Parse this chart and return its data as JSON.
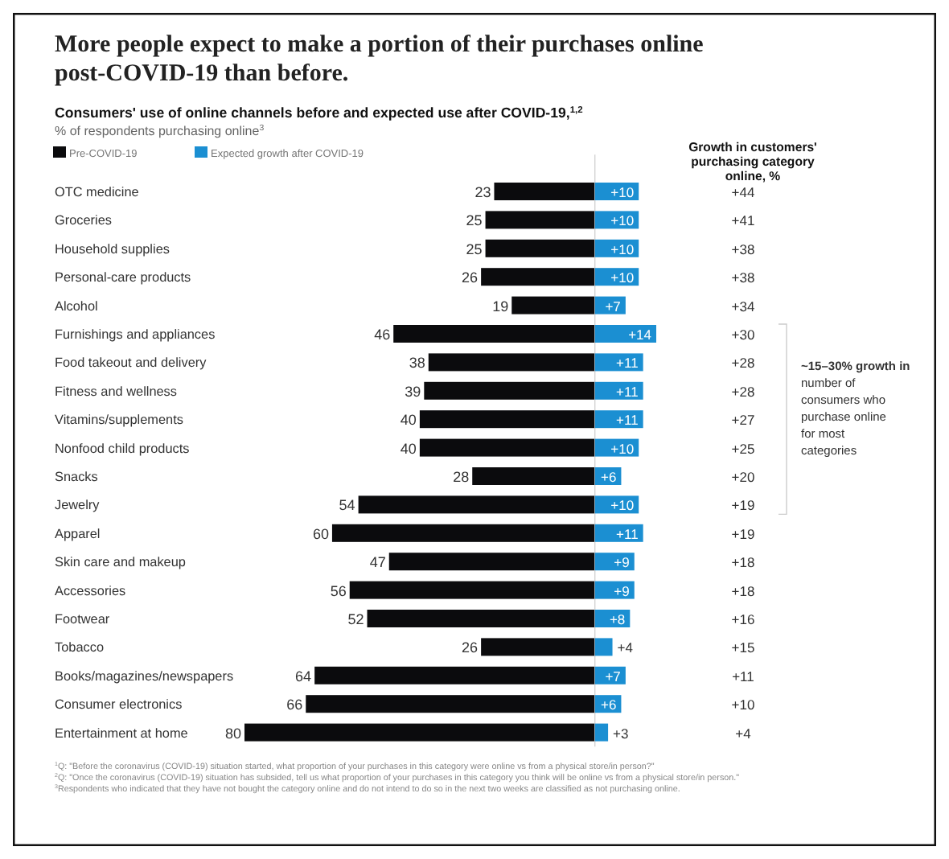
{
  "chart_data": [
    {
      "type": "bar",
      "orientation": "horizontal",
      "xlim": [
        80,
        0
      ],
      "data_labels": true,
      "title": "More people expect to make a portion of their purchases online post-COVID-19 than before.",
      "subtitle": "Consumers' use of online channels before and expected use after COVID-19,$^{1,2}$",
      "categories": [
        "OTC medicine",
        "Groceries",
        "Household supplies",
        "Personal-care products",
        "Alcohol",
        "Furnishings and appliances",
        "Food takeout and delivery",
        "Fitness and wellness",
        "Vitamins/supplements",
        "Nonfood child products",
        "Snacks",
        "Jewelry",
        "Apparel",
        "Skin care and makeup",
        "Accessories",
        "Footwear",
        "Tobacco",
        "Books/magazines/newspapers",
        "Consumer electronics",
        "Entertainment at home"
      ],
      "series": [
        {
          "name": "Pre-COVID-19",
          "color": "#0b0b0d",
          "values": [
            23,
            25,
            25,
            26,
            19,
            46,
            38,
            39,
            40,
            40,
            28,
            54,
            60,
            47,
            56,
            52,
            26,
            64,
            66,
            80
          ]
        }
      ],
      "legend": "top left",
      "annotations": [
        "% of respondents purchasing online$^{3}$",
        "Growth in customers' purchasing category online, %",
        "~15–30% growth in number of consumers who purchase online for most categories",
        "$^{1}$Q: \"Before the coronavirus (COVID-19) situation started, what proportion of your purchases in this category were online vs from a physical store/in person?\"",
        "$^{2}$Q: \"Once the coronavirus (COVID-19) situation has subsided, tell us what proportion of your purchases in this category you think will be online vs from a physical store/in person.\"",
        "$^{3}$Respondents who indicated that they have not bought the category online and do not intend to do so in the next two weeks are classified as not purchasing online.",
        "+44",
        "+41",
        "+38",
        "+38",
        "+34",
        "+30",
        "+28",
        "+28",
        "+27",
        "+25",
        "+20",
        "+19",
        "+19",
        "+18",
        "+18",
        "+16",
        "+15",
        "+11",
        "+10",
        "+4"
      ]
    },
    {
      "type": "bar",
      "orientation": "horizontal",
      "xlim": [
        0,
        14
      ],
      "categories": [
        null,
        null,
        null,
        null,
        null,
        null,
        null,
        null,
        null,
        null,
        null,
        null,
        null,
        null,
        null,
        null,
        null,
        null,
        null,
        null
      ],
      "series": [
        {
          "name": "Expected growth after COVID-19",
          "color": "#1b8fd2",
          "values": [
            10,
            10,
            10,
            10,
            7,
            14,
            11,
            11,
            11,
            10,
            6,
            10,
            11,
            9,
            9,
            8,
            4,
            7,
            6,
            3
          ],
          "value_labels": [
            "+10",
            "+10",
            "+10",
            "+10",
            "+7",
            "+14",
            "+11",
            "+11",
            "+11",
            "+10",
            "+6",
            "+10",
            "+11",
            "+9",
            "+9",
            "+8",
            "+4",
            "+7",
            "+6",
            "+3"
          ]
        }
      ],
      "legend": "top left"
    }
  ]
}
